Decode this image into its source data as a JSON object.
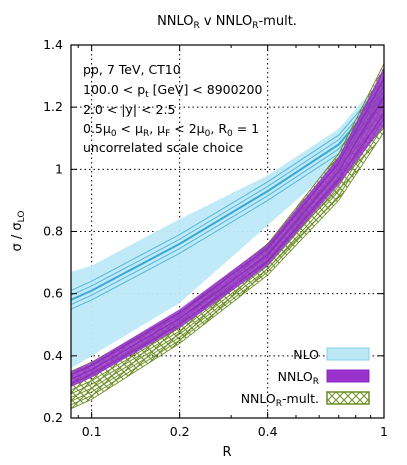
{
  "chart_data": {
    "type": "line",
    "title": "NNLO_R v NNLO_R-mult.",
    "title_parts": {
      "t1": "NNLO",
      "s1": "R",
      "t2": " v NNLO",
      "s2": "R",
      "t3": "-mult."
    },
    "xlabel": "R",
    "ylabel_parts": {
      "a": "σ / σ",
      "sub": "LO"
    },
    "x_scale": "log",
    "xlim": [
      0.085,
      1.0
    ],
    "ylim": [
      0.2,
      1.4
    ],
    "x_ticks": [
      0.1,
      0.2,
      0.4,
      1
    ],
    "x_tick_labels": [
      "0.1",
      "0.2",
      "0.4",
      "1"
    ],
    "y_ticks": [
      0.2,
      0.4,
      0.6,
      0.8,
      1.0,
      1.2,
      1.4
    ],
    "y_tick_labels": [
      "0.2",
      "0.4",
      "0.6",
      "0.8",
      "1",
      "1.2",
      "1.4"
    ],
    "grid": "dotted at major ticks",
    "legend_placement": "bottom-right",
    "annotations": [
      "pp, 7 TeV, CT10",
      "100.0 < p_t [GeV] < 8900200",
      "2.0 < |y| < 2.5",
      "0.5μ0 < μR, μF < 2μ0, R0 = 1",
      "uncorrelated scale choice"
    ],
    "annotation_parts": {
      "line1": "pp, 7 TeV, CT10",
      "line2a": "100.0 < p",
      "line2sub": "t",
      "line2b": " [GeV] < 8900200",
      "line3": "2.0 < |y| < 2.5",
      "line4a": "0.5μ",
      "line4s1": "0",
      "line4b": " < μ",
      "line4s2": "R",
      "line4c": ", μ",
      "line4s3": "F",
      "line4d": " < 2μ",
      "line4s4": "0",
      "line4e": ", R",
      "line4s5": "0",
      "line4f": " = 1",
      "line5": "uncorrelated scale choice"
    },
    "x": [
      0.085,
      0.1,
      0.2,
      0.4,
      0.7,
      1.0
    ],
    "series": [
      {
        "name": "NLO",
        "legend_label": "NLO",
        "color": "#87ceeb",
        "line_color": "#3aa8d4",
        "central": [
          0.58,
          0.61,
          0.76,
          0.93,
          1.08,
          1.25
        ],
        "band_low": [
          0.36,
          0.4,
          0.57,
          0.82,
          1.02,
          1.2
        ],
        "band_high": [
          0.67,
          0.69,
          0.84,
          0.98,
          1.13,
          1.3
        ]
      },
      {
        "name": "NNLO_R",
        "legend_parts": {
          "t": "NNLO",
          "s": "R"
        },
        "color": "#9932cc",
        "line_color": "#8a2bbf",
        "central": [
          0.32,
          0.35,
          0.52,
          0.72,
          0.99,
          1.24
        ],
        "band_low": [
          0.3,
          0.33,
          0.49,
          0.69,
          0.95,
          1.14
        ],
        "band_high": [
          0.35,
          0.38,
          0.55,
          0.76,
          1.04,
          1.33
        ]
      },
      {
        "name": "NNLO_R-mult.",
        "legend_parts": {
          "t": "NNLO",
          "s": "R",
          "t2": "-mult."
        },
        "color": "#6b8e23",
        "central": [
          0.28,
          0.31,
          0.48,
          0.7,
          0.97,
          1.24
        ],
        "band_low": [
          0.23,
          0.26,
          0.44,
          0.66,
          0.9,
          1.12
        ],
        "band_high": [
          0.35,
          0.38,
          0.54,
          0.76,
          1.05,
          1.34
        ]
      }
    ]
  }
}
